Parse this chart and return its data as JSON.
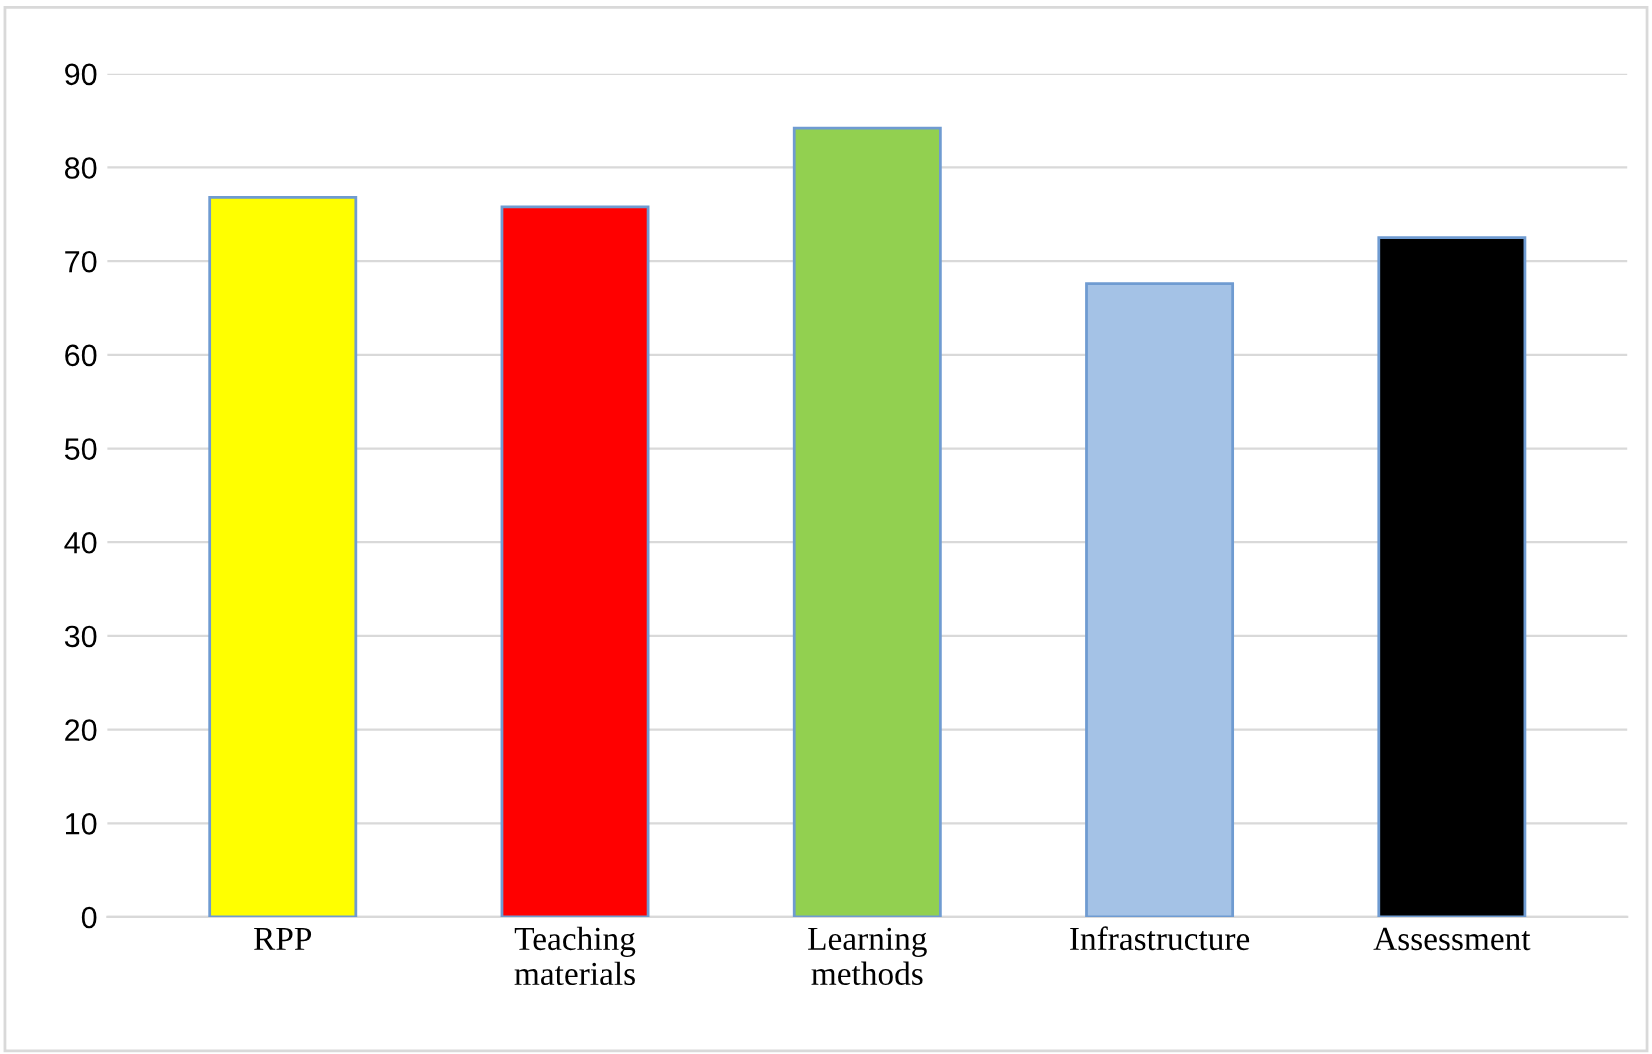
{
  "chart_data": {
    "type": "bar",
    "categories": [
      "RPP",
      "Teaching\nmaterials",
      "Learning\nmethods",
      "Infrastructure",
      "Assessment"
    ],
    "values": [
      76.8,
      75.8,
      84.2,
      67.6,
      72.5
    ],
    "colors": [
      "#ffff00",
      "#ff0000",
      "#92d050",
      "#a4c2e6",
      "#000000"
    ],
    "ylim": [
      0,
      90
    ],
    "yticks": [
      0,
      10,
      20,
      30,
      40,
      50,
      60,
      70,
      80,
      90
    ],
    "grid": "y",
    "legend": false
  }
}
